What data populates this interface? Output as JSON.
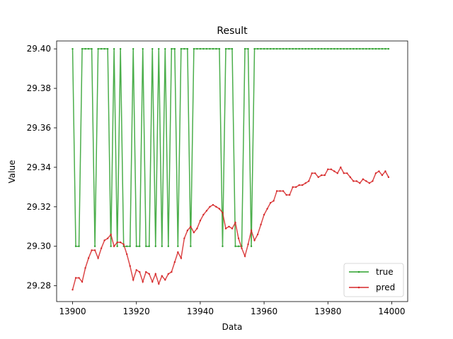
{
  "chart_data": {
    "type": "line",
    "title": "Result",
    "xlabel": "Data",
    "ylabel": "Value",
    "xlim": [
      13895,
      14005
    ],
    "ylim": [
      29.272,
      29.404
    ],
    "xticks": [
      13900,
      13920,
      13940,
      13960,
      13980,
      14000
    ],
    "xtick_labels": [
      "13900",
      "13920",
      "13940",
      "13960",
      "13980",
      "14000"
    ],
    "yticks": [
      29.28,
      29.3,
      29.32,
      29.34,
      29.36,
      29.38,
      29.4
    ],
    "ytick_labels": [
      "29.28",
      "29.30",
      "29.32",
      "29.34",
      "29.36",
      "29.38",
      "29.40"
    ],
    "grid": false,
    "legend_position": "lower-right",
    "x": [
      13900,
      13901,
      13902,
      13903,
      13904,
      13905,
      13906,
      13907,
      13908,
      13909,
      13910,
      13911,
      13912,
      13913,
      13914,
      13915,
      13916,
      13917,
      13918,
      13919,
      13920,
      13921,
      13922,
      13923,
      13924,
      13925,
      13926,
      13927,
      13928,
      13929,
      13930,
      13931,
      13932,
      13933,
      13934,
      13935,
      13936,
      13937,
      13938,
      13939,
      13940,
      13941,
      13942,
      13943,
      13944,
      13945,
      13946,
      13947,
      13948,
      13949,
      13950,
      13951,
      13952,
      13953,
      13954,
      13955,
      13956,
      13957,
      13958,
      13959,
      13960,
      13961,
      13962,
      13963,
      13964,
      13965,
      13966,
      13967,
      13968,
      13969,
      13970,
      13971,
      13972,
      13973,
      13974,
      13975,
      13976,
      13977,
      13978,
      13979,
      13980,
      13981,
      13982,
      13983,
      13984,
      13985,
      13986,
      13987,
      13988,
      13989,
      13990,
      13991,
      13992,
      13993,
      13994,
      13995,
      13996,
      13997,
      13998,
      13999
    ],
    "series": [
      {
        "name": "true",
        "color": "#2ca02c",
        "values": [
          29.4,
          29.3,
          29.3,
          29.4,
          29.4,
          29.4,
          29.4,
          29.3,
          29.4,
          29.4,
          29.4,
          29.4,
          29.3,
          29.4,
          29.3,
          29.4,
          29.3,
          29.3,
          29.3,
          29.4,
          29.3,
          29.3,
          29.4,
          29.3,
          29.3,
          29.4,
          29.3,
          29.4,
          29.3,
          29.4,
          29.3,
          29.4,
          29.4,
          29.3,
          29.4,
          29.4,
          29.4,
          29.3,
          29.4,
          29.4,
          29.4,
          29.4,
          29.4,
          29.4,
          29.4,
          29.4,
          29.4,
          29.3,
          29.4,
          29.4,
          29.4,
          29.3,
          29.3,
          29.3,
          29.4,
          29.4,
          29.3,
          29.4,
          29.4,
          29.4,
          29.4,
          29.4,
          29.4,
          29.4,
          29.4,
          29.4,
          29.4,
          29.4,
          29.4,
          29.4,
          29.4,
          29.4,
          29.4,
          29.4,
          29.4,
          29.4,
          29.4,
          29.4,
          29.4,
          29.4,
          29.4,
          29.4,
          29.4,
          29.4,
          29.4,
          29.4,
          29.4,
          29.4,
          29.4,
          29.4,
          29.4,
          29.4,
          29.4,
          29.4,
          29.4,
          29.4,
          29.4,
          29.4,
          29.4,
          29.4
        ]
      },
      {
        "name": "pred",
        "color": "#d62728",
        "values": [
          29.278,
          29.284,
          29.284,
          29.282,
          29.289,
          29.294,
          29.298,
          29.298,
          29.294,
          29.299,
          29.303,
          29.304,
          29.306,
          29.3,
          29.302,
          29.302,
          29.301,
          29.296,
          29.29,
          29.283,
          29.288,
          29.287,
          29.282,
          29.287,
          29.286,
          29.282,
          29.286,
          29.281,
          29.285,
          29.283,
          29.286,
          29.287,
          29.292,
          29.297,
          29.294,
          29.304,
          29.308,
          29.31,
          29.307,
          29.309,
          29.313,
          29.316,
          29.318,
          29.32,
          29.321,
          29.32,
          29.319,
          29.317,
          29.309,
          29.31,
          29.309,
          29.312,
          29.304,
          29.299,
          29.295,
          29.301,
          29.308,
          29.303,
          29.306,
          29.311,
          29.316,
          29.319,
          29.322,
          29.323,
          29.328,
          29.328,
          29.328,
          29.326,
          29.326,
          29.33,
          29.33,
          29.331,
          29.331,
          29.332,
          29.333,
          29.337,
          29.337,
          29.335,
          29.336,
          29.336,
          29.339,
          29.339,
          29.338,
          29.337,
          29.34,
          29.337,
          29.337,
          29.335,
          29.333,
          29.333,
          29.332,
          29.334,
          29.333,
          29.332,
          29.333,
          29.337,
          29.338,
          29.336,
          29.338,
          29.335
        ]
      }
    ]
  }
}
